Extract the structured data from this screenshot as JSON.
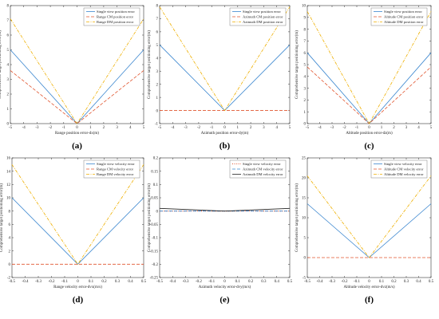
{
  "colors": {
    "blue": "#3a86cf",
    "red": "#e1552f",
    "orange": "#efb000",
    "black": "#222222"
  },
  "chart_data": [
    {
      "type": "line",
      "label": "(a)",
      "xlabel": "Range position error-dx(m)",
      "ylabel": "Comprehensive target positioning error(m)",
      "xlim": [
        -5,
        5
      ],
      "ylim": [
        0,
        8
      ],
      "xticks": [
        -5,
        -4,
        -3,
        -2,
        -1,
        0,
        1,
        2,
        3,
        4,
        5
      ],
      "yticks": [
        0,
        1,
        2,
        3,
        4,
        5,
        6,
        7,
        8
      ],
      "legend": "top-right",
      "x": [
        -5,
        0,
        5
      ],
      "series": [
        {
          "name": "Single view position error",
          "values": [
            5.0,
            0.0,
            5.0
          ],
          "style": "solid",
          "color": "#3a86cf"
        },
        {
          "name": "Range CM position error",
          "values": [
            3.6,
            0.0,
            3.6
          ],
          "style": "dashed",
          "color": "#e1552f"
        },
        {
          "name": "Range DM position error",
          "values": [
            7.1,
            0.0,
            7.1
          ],
          "style": "dashdot",
          "color": "#efb000"
        }
      ]
    },
    {
      "type": "line",
      "label": "(b)",
      "xlabel": "Azimuth position error-dy(m)",
      "ylabel": "Comprehensive target positioning error(m)",
      "xlim": [
        -5,
        5
      ],
      "ylim": [
        -1,
        8
      ],
      "xticks": [
        -5,
        -4,
        -3,
        -2,
        -1,
        0,
        1,
        2,
        3,
        4,
        5
      ],
      "yticks": [
        -1,
        0,
        1,
        2,
        3,
        4,
        5,
        6,
        7,
        8
      ],
      "legend": "top-right",
      "x": [
        -5,
        0,
        5
      ],
      "series": [
        {
          "name": "Single view position error",
          "values": [
            5.0,
            0.0,
            5.0
          ],
          "style": "solid",
          "color": "#3a86cf"
        },
        {
          "name": "Azimuth CM position error",
          "values": [
            0.0,
            0.0,
            0.0
          ],
          "style": "dashed",
          "color": "#e1552f"
        },
        {
          "name": "Azimuth DM position error",
          "values": [
            7.9,
            0.0,
            7.9
          ],
          "style": "dashdot",
          "color": "#efb000"
        }
      ]
    },
    {
      "type": "line",
      "label": "(c)",
      "xlabel": "Altitude position error-dz(m)",
      "ylabel": "Comprehensive target positioning error(m)",
      "xlim": [
        -5,
        5
      ],
      "ylim": [
        0,
        10
      ],
      "xticks": [
        -5,
        -4,
        -3,
        -2,
        -1,
        0,
        1,
        2,
        3,
        4,
        5
      ],
      "yticks": [
        0,
        1,
        2,
        3,
        4,
        5,
        6,
        7,
        8,
        9,
        10
      ],
      "legend": "top-right",
      "x": [
        -5,
        0,
        5
      ],
      "series": [
        {
          "name": "Single view position error",
          "values": [
            6.0,
            0.0,
            6.0
          ],
          "style": "solid",
          "color": "#3a86cf"
        },
        {
          "name": "Altitude CM position error",
          "values": [
            4.8,
            0.0,
            4.8
          ],
          "style": "dashed",
          "color": "#e1552f"
        },
        {
          "name": "Altitude DM position error",
          "values": [
            9.5,
            0.0,
            9.5
          ],
          "style": "dashdot",
          "color": "#efb000"
        }
      ]
    },
    {
      "type": "line",
      "label": "(d)",
      "xlabel": "Range velocity error-dvx(m/s)",
      "ylabel": "Comprehensive target positioning error(m)",
      "xlim": [
        -0.5,
        0.5
      ],
      "ylim": [
        -2,
        16
      ],
      "xticks": [
        -0.5,
        -0.4,
        -0.3,
        -0.2,
        -0.1,
        0,
        0.1,
        0.2,
        0.3,
        0.4,
        0.5
      ],
      "yticks": [
        -2,
        0,
        2,
        4,
        6,
        8,
        10,
        12,
        14,
        16
      ],
      "legend": "top-right",
      "x": [
        -0.5,
        0,
        0.5
      ],
      "series": [
        {
          "name": "Single view velocity error",
          "values": [
            10.0,
            0.0,
            10.0
          ],
          "style": "solid",
          "color": "#3a86cf"
        },
        {
          "name": "Range CM velocity error",
          "values": [
            0.0,
            0.0,
            0.0
          ],
          "style": "dashed",
          "color": "#e1552f"
        },
        {
          "name": "Range DM velocity error",
          "values": [
            15.0,
            0.0,
            15.0
          ],
          "style": "dashdot",
          "color": "#efb000"
        }
      ]
    },
    {
      "type": "line",
      "label": "(e)",
      "xlabel": "Azimuth velocity error-dvy(m/s)",
      "ylabel": "Comprehensive target positioning error(m)",
      "xlim": [
        -0.5,
        0.5
      ],
      "ylim": [
        -0.25,
        0.2
      ],
      "xticks": [
        -0.5,
        -0.4,
        -0.3,
        -0.2,
        -0.1,
        0,
        0.1,
        0.2,
        0.3,
        0.4,
        0.5
      ],
      "yticks": [
        -0.25,
        -0.2,
        -0.15,
        -0.1,
        -0.05,
        0,
        0.05,
        0.1,
        0.15,
        0.2
      ],
      "legend": "top-right",
      "x": [
        -0.5,
        0,
        0.5
      ],
      "series": [
        {
          "name": "Single view velocity error",
          "values": [
            0.0,
            0.0,
            0.0
          ],
          "style": "dotted",
          "color": "#e1552f"
        },
        {
          "name": "Azimuth CM velocity error",
          "values": [
            0.0,
            0.0,
            0.0
          ],
          "style": "dashed",
          "color": "#3a86cf"
        },
        {
          "name": "Azimuth DM velocity error",
          "values": [
            0.01,
            0.0,
            0.01
          ],
          "style": "solid",
          "color": "#222222"
        }
      ]
    },
    {
      "type": "line",
      "label": "(f)",
      "xlabel": "Altitude velocity error-dvz(m/s)",
      "ylabel": "Comprehensive target positioning error(m)",
      "xlim": [
        -0.5,
        0.5
      ],
      "ylim": [
        -5,
        25
      ],
      "xticks": [
        -0.5,
        -0.4,
        -0.3,
        -0.2,
        -0.1,
        0,
        0.1,
        0.2,
        0.3,
        0.4,
        0.5
      ],
      "yticks": [
        -5,
        0,
        5,
        10,
        15,
        20,
        25
      ],
      "legend": "top-right",
      "x": [
        -0.5,
        0,
        0.5
      ],
      "series": [
        {
          "name": "Single view velocity error",
          "values": [
            13.5,
            0.0,
            13.5
          ],
          "style": "solid",
          "color": "#3a86cf"
        },
        {
          "name": "Altitude CM velocity error",
          "values": [
            0.0,
            0.0,
            0.0
          ],
          "style": "dashed",
          "color": "#e1552f"
        },
        {
          "name": "Altitude DM velocity error",
          "values": [
            20.5,
            0.0,
            20.5
          ],
          "style": "dashdot",
          "color": "#efb000"
        }
      ]
    }
  ]
}
